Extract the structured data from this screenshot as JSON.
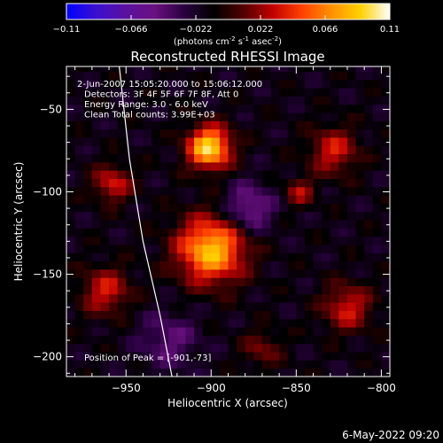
{
  "colorbar": {
    "tick_labels": [
      "-0.11",
      "-0.066",
      "-0.022",
      "0.022",
      "0.066",
      "0.11"
    ],
    "range": [
      -0.11,
      0.11
    ],
    "units_text": "(photons cm",
    "units_sup1": "-2",
    "units_mid": " s",
    "units_sup2": "-1",
    "units_end": " asec",
    "units_sup3": "-2",
    "units_close": ")",
    "colors": [
      "#0000ff",
      "#3a10d0",
      "#5a10a0",
      "#6a1080",
      "#2a0040",
      "#000000",
      "#500000",
      "#c00000",
      "#ff4000",
      "#ff9000",
      "#ffd000",
      "#ffffff"
    ]
  },
  "chart_data": {
    "type": "heatmap",
    "title": "Reconstructed RHESSI Image",
    "xlabel": "Heliocentric X (arcsec)",
    "ylabel": "Heliocentric Y (arcsec)",
    "xlim": [
      -985,
      -795
    ],
    "ylim": [
      -212,
      -24
    ],
    "x_ticks": [
      -950,
      -900,
      -850,
      -800
    ],
    "y_ticks": [
      -50,
      -100,
      -150,
      -200
    ],
    "x_tick_labels": [
      "−950",
      "−900",
      "−850",
      "−800"
    ],
    "y_tick_labels": [
      "−50",
      "−100",
      "−150",
      "−200"
    ],
    "annotations": [
      "2-Jun-2007 15:05:20.000 to 15:06:12.000",
      "Detectors: 3F 4F 5F 6F 7F 8F, Att 0",
      "Energy Range: 3.0 - 6.0 keV",
      "Clean     Total counts: 3.99E+03"
    ],
    "peak_label": "Position of Peak = [-901,-73]",
    "peak": [
      -901,
      -73
    ],
    "sources": [
      {
        "x": -901,
        "y": -73,
        "sigma": 9,
        "value": 0.11
      },
      {
        "x": -900,
        "y": -135,
        "sigma": 14,
        "value": 0.1
      },
      {
        "x": -958,
        "y": -95,
        "sigma": 8,
        "value": 0.05
      },
      {
        "x": -962,
        "y": -160,
        "sigma": 10,
        "value": 0.05
      },
      {
        "x": -848,
        "y": -100,
        "sigma": 6,
        "value": 0.04
      },
      {
        "x": -828,
        "y": -75,
        "sigma": 10,
        "value": 0.05
      },
      {
        "x": -820,
        "y": -170,
        "sigma": 10,
        "value": 0.05
      },
      {
        "x": -870,
        "y": -195,
        "sigma": 8,
        "value": 0.03
      },
      {
        "x": -878,
        "y": -110,
        "sigma": 10,
        "value": -0.045
      },
      {
        "x": -925,
        "y": -190,
        "sigma": 12,
        "value": -0.03
      }
    ],
    "limb_curve": [
      [
        -954,
        -24
      ],
      [
        -948,
        -80
      ],
      [
        -940,
        -130
      ],
      [
        -930,
        -175
      ],
      [
        -923,
        -212
      ]
    ]
  },
  "footer": {
    "timestamp": "6-May-2022 09:20"
  }
}
